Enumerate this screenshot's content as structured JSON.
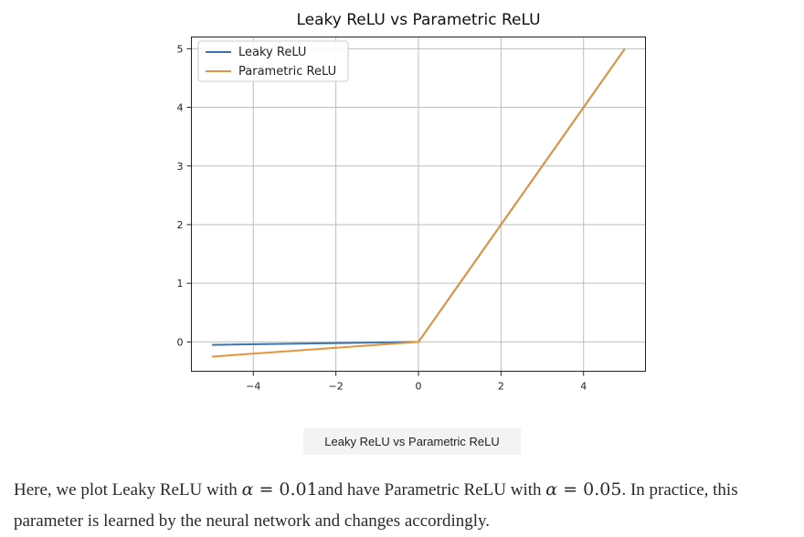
{
  "chart_data": {
    "type": "line",
    "title": "Leaky ReLU vs Parametric ReLU",
    "xlabel": "",
    "ylabel": "",
    "xlim": [
      -5.5,
      5.5
    ],
    "ylim": [
      -0.5,
      5.2
    ],
    "xticks": [
      -4,
      -2,
      0,
      2,
      4
    ],
    "yticks": [
      0,
      1,
      2,
      3,
      4,
      5
    ],
    "xtick_labels": [
      "−4",
      "−2",
      "0",
      "2",
      "4"
    ],
    "ytick_labels": [
      "0",
      "1",
      "2",
      "3",
      "4",
      "5"
    ],
    "grid": true,
    "legend_position": "top-left",
    "series": [
      {
        "name": "Leaky ReLU",
        "color": "#3a75b0",
        "x": [
          -5,
          0,
          5
        ],
        "y": [
          -0.05,
          0,
          5
        ]
      },
      {
        "name": "Parametric ReLU",
        "color": "#e1963d",
        "x": [
          -5,
          0,
          5
        ],
        "y": [
          -0.25,
          0,
          5
        ]
      }
    ]
  },
  "caption": "Leaky ReLU vs Parametric ReLU",
  "paragraph": {
    "part1": "Here, we plot Leaky ReLU with ",
    "alpha": "α",
    "eq": " = ",
    "value1": "0.01",
    "part2": "and have Parametric ReLU with ",
    "value2": "0.05",
    "part3": ". In practice, this parameter is learned by the neural network and changes accordingly."
  }
}
